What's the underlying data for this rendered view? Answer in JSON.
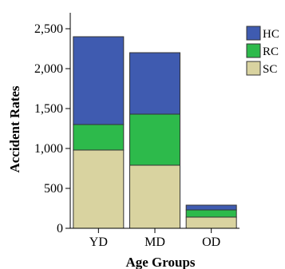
{
  "chart_data": {
    "type": "bar",
    "stacked": true,
    "title": "",
    "xlabel": "Age Groups",
    "ylabel": "Accident Rates",
    "categories": [
      "YD",
      "MD",
      "OD"
    ],
    "ylim": [
      0,
      2700
    ],
    "yticks": [
      0,
      500,
      1000,
      1500,
      2000,
      2500
    ],
    "ytick_labels": [
      "0",
      "500",
      "1,000",
      "1,500",
      "2,000",
      "2,500"
    ],
    "grid": false,
    "legend_position": "right",
    "series": [
      {
        "name": "SC",
        "color": "#d9d3a0",
        "values": [
          980,
          790,
          140
        ]
      },
      {
        "name": "RC",
        "color": "#2dba4b",
        "values": [
          320,
          640,
          90
        ]
      },
      {
        "name": "HC",
        "color": "#3f5bb0",
        "values": [
          1100,
          770,
          60
        ]
      }
    ]
  }
}
